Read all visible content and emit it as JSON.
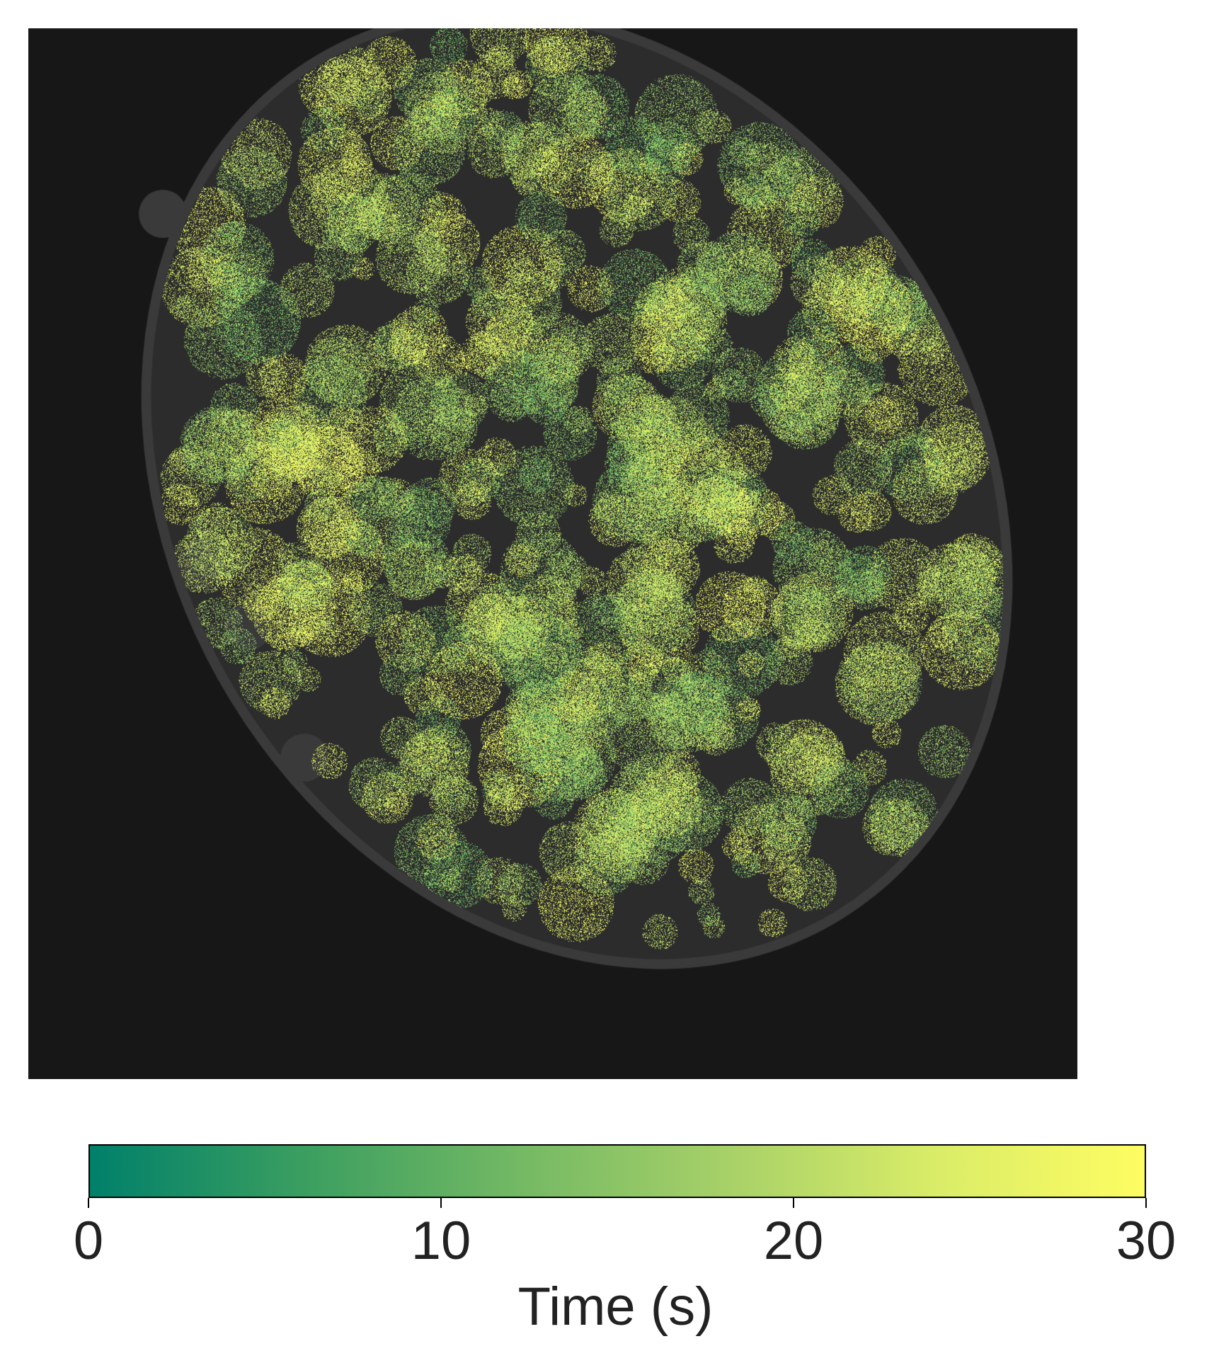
{
  "figure": {
    "background_color": "#171717",
    "cell_glow_color": "#3a3a3a",
    "colormap": [
      "#00806a",
      "#3a9e60",
      "#72b864",
      "#a6d068",
      "#d9ec68",
      "#fefd62"
    ]
  },
  "colorbar": {
    "label": "Time (s)",
    "min": 0,
    "max": 30,
    "ticks": [
      {
        "value": 0,
        "label": "0"
      },
      {
        "value": 10,
        "label": "10"
      },
      {
        "value": 20,
        "label": "20"
      },
      {
        "value": 30,
        "label": "30"
      }
    ]
  }
}
